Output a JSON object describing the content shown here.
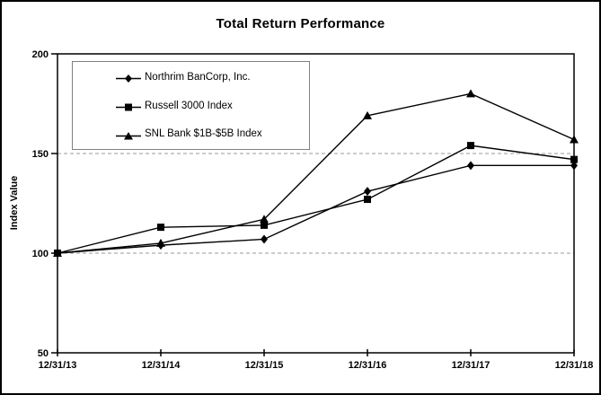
{
  "chart": {
    "title": "Total Return Performance",
    "y_axis_title": "Index Value"
  },
  "chart_data": {
    "type": "line",
    "title": "Total Return Performance",
    "xlabel": "",
    "ylabel": "Index Value",
    "categories": [
      "12/31/13",
      "12/31/14",
      "12/31/15",
      "12/31/16",
      "12/31/17",
      "12/31/18"
    ],
    "series": [
      {
        "name": "Northrim BanCorp, Inc.",
        "marker": "diamond",
        "values": [
          100,
          104,
          107,
          131,
          144,
          144
        ]
      },
      {
        "name": "Russell 3000 Index",
        "marker": "square",
        "values": [
          100,
          113,
          114,
          127,
          154,
          147
        ]
      },
      {
        "name": "SNL Bank $1B-$5B Index",
        "marker": "triangle",
        "values": [
          100,
          105,
          117,
          169,
          180,
          157
        ]
      }
    ],
    "ylim": [
      50,
      200
    ],
    "yticks": [
      200,
      150,
      100,
      50
    ],
    "gridlines": [
      150,
      100
    ],
    "grid": "horizontal dashed at 100 and 150",
    "legend_position": "top-left inside plot",
    "line_color": "#000000",
    "marker_color": "#000000",
    "grid_color": "#999999",
    "legend_border_color": "#808080",
    "plot_border_color": "#000000"
  }
}
